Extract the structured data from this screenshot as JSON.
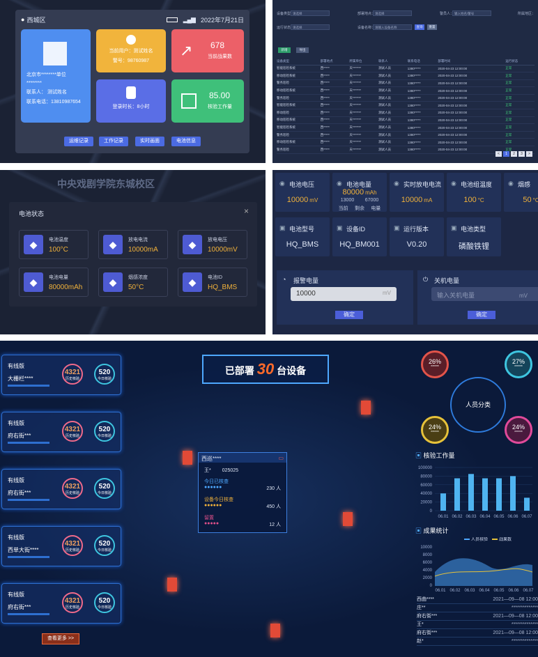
{
  "p1": {
    "location": "西城区",
    "date": "2022年7月21日",
    "unit_name": "北京市********单位",
    "unit_code": "********",
    "contact_label": "联系人：",
    "contact_name": "测试姓名",
    "phone_label": "联系电话：",
    "phone": "13810987654",
    "current_user": "当前用户：测试姓名",
    "badge_label": "警号：",
    "badge": "98760987",
    "results_value": "678",
    "results_label": "当前战果数",
    "login_time": "登录时长：8小时",
    "workload_value": "85.00",
    "workload_label": "核验工作量",
    "buttons": [
      "运维记录",
      "工作记录",
      "实时画面",
      "电池信息"
    ]
  },
  "p2": {
    "filters": [
      {
        "label": "设备类型：",
        "value": "请选择"
      },
      {
        "label": "部署地点：",
        "value": "请选择"
      },
      {
        "label": "警员人：",
        "value": "输入姓名/警号"
      },
      {
        "label": "所属地区：",
        "value": ""
      },
      {
        "label": "运行状态：",
        "value": "请选择"
      },
      {
        "label": "设备名称：",
        "value": "请输入设备名称"
      }
    ],
    "search_btn": "查询",
    "reset_btn": "重置",
    "add_btn": "新增",
    "export_btn": "导出",
    "headers": [
      "设备类型",
      "部署地点",
      "所属单位",
      "联系人",
      "联系电话",
      "部署时间",
      "运行状态"
    ],
    "rows": [
      [
        "智能巡检系统",
        "西*****",
        "天*******",
        "测试人员",
        "1380*****",
        "2020-04-23 12:00:00",
        "正常"
      ],
      [
        "移动巡检系统",
        "西*****",
        "天*******",
        "测试人员",
        "1380*****",
        "2020-04-23 12:00:00",
        "正常"
      ],
      [
        "警务巡检",
        "西*****",
        "天*******",
        "测试人员",
        "1380*****",
        "2020-04-23 12:00:00",
        "正常"
      ],
      [
        "移动巡检系统",
        "西*****",
        "天*******",
        "测试人员",
        "1380*****",
        "2020-04-23 12:00:00",
        "正常"
      ],
      [
        "警务巡检",
        "西*****",
        "天*******",
        "测试人员",
        "1380*****",
        "2020-04-23 12:00:00",
        "正常"
      ],
      [
        "智能巡检系统",
        "西*****",
        "天*******",
        "测试人员",
        "1380*****",
        "2020-04-23 12:00:00",
        "正常"
      ],
      [
        "移动巡检",
        "西*****",
        "天*******",
        "测试人员",
        "1380*****",
        "2020-04-23 12:00:00",
        "正常"
      ],
      [
        "移动巡检系统",
        "西*****",
        "天*******",
        "测试人员",
        "1380*****",
        "2020-04-23 12:00:00",
        "正常"
      ],
      [
        "智能巡检系统",
        "西*****",
        "天*******",
        "测试人员",
        "1380*****",
        "2020-04-23 12:00:00",
        "正常"
      ],
      [
        "警务巡检",
        "西*****",
        "天*******",
        "测试人员",
        "1380*****",
        "2020-04-23 12:00:00",
        "正常"
      ],
      [
        "移动巡检系统",
        "西*****",
        "天*******",
        "测试人员",
        "1380*****",
        "2020-04-23 12:00:00",
        "正常"
      ],
      [
        "警务巡检",
        "西*****",
        "天*******",
        "测试人员",
        "1380*****",
        "2020-04-23 12:00:00",
        "正常"
      ]
    ],
    "pages": [
      "<",
      "1",
      "2",
      "3",
      ">"
    ]
  },
  "p3": {
    "map_label": "中央戏剧学院东城校区",
    "title": "电池状态",
    "close": "×",
    "cells": [
      {
        "label": "电池温度",
        "value": "100°C",
        "icon": "thermometer-icon"
      },
      {
        "label": "放电电流",
        "value": "10000mA",
        "icon": "current-icon"
      },
      {
        "label": "放电电压",
        "value": "10000mV",
        "icon": "voltage-icon"
      },
      {
        "label": "电池电量",
        "value": "80000mAh",
        "icon": "battery-icon"
      },
      {
        "label": "烟感浓度",
        "value": "50°C",
        "icon": "smoke-icon"
      },
      {
        "label": "电池ID",
        "value": "HQ_BMS",
        "icon": "battery-id-icon"
      }
    ]
  },
  "p4": {
    "row1": [
      {
        "label": "电池电压",
        "value": "10000",
        "unit": "mV"
      },
      {
        "label": "电池电量",
        "value": "80000",
        "unit": "mAh",
        "sub1": "13000",
        "sub2": "67000",
        "s1": "当前",
        "s2": "剩余",
        "s3": "电量"
      },
      {
        "label": "实时放电电流",
        "value": "10000",
        "unit": "mA"
      },
      {
        "label": "电池组温度",
        "value": "100",
        "unit": "°C"
      },
      {
        "label": "烟感",
        "value": "50",
        "unit": "°C"
      }
    ],
    "row2": [
      {
        "label": "电池型号",
        "value": "HQ_BMS"
      },
      {
        "label": "设备ID",
        "value": "HQ_BM001"
      },
      {
        "label": "运行版本",
        "value": "V0.20"
      },
      {
        "label": "电池类型",
        "value": "磷酸铁锂"
      }
    ],
    "alarm": {
      "label": "报警电量",
      "value": "10000",
      "unit": "mV",
      "btn": "确定"
    },
    "shutdown": {
      "label": "关机电量",
      "placeholder": "输入关机电量",
      "unit": "mV",
      "btn": "确定"
    }
  },
  "p5": {
    "deployed_prefix": "已部署",
    "deployed_num": "30",
    "deployed_suffix": "台设备",
    "left_cards": [
      {
        "tag": "有线版",
        "name": "大栅栏****",
        "hist": "4321",
        "today": "520"
      },
      {
        "tag": "有线版",
        "name": "府右街***",
        "hist": "4321",
        "today": "520"
      },
      {
        "tag": "有线版",
        "name": "府右街***",
        "hist": "4321",
        "today": "520"
      },
      {
        "tag": "有线版",
        "name": "西单大街****",
        "hist": "4321",
        "today": "520"
      },
      {
        "tag": "有线版",
        "name": "府右街***",
        "hist": "4321",
        "today": "520"
      }
    ],
    "hist_label": "历史核验",
    "today_label": "今日核验",
    "more_btn": "查看更多 >>",
    "popup": {
      "title": "西巡****",
      "user": "王*",
      "id": "025025",
      "row1": "今日已核查",
      "v1": "230",
      "row2": "设备今日核查",
      "v2": "450",
      "row3": "留置",
      "v3": "12",
      "unit": "人"
    },
    "people": {
      "title": "人员分类",
      "pcts": [
        "26%",
        "27%",
        "24%",
        "24%"
      ],
      "sub": "******"
    },
    "work_title": "核验工作量",
    "work_chart": {
      "type": "bar",
      "categories": [
        "06.01",
        "06.02",
        "06.03",
        "06.04",
        "06.05",
        "06.06",
        "06.07"
      ],
      "values": [
        40000,
        75000,
        85000,
        75000,
        75000,
        80000,
        30000
      ],
      "yticks": [
        "100000",
        "80000",
        "60000",
        "40000",
        "20000",
        "0"
      ],
      "ylim": [
        0,
        100000
      ]
    },
    "result_title": "成果统计",
    "result_chart": {
      "type": "area",
      "series": [
        {
          "name": "人员核验"
        },
        {
          "name": "战果数"
        }
      ],
      "yticks": [
        "10000",
        "8000",
        "6000",
        "4000",
        "2000",
        "0"
      ],
      "categories": [
        "06.01",
        "06.02",
        "06.03",
        "06.04",
        "06.05",
        "06.06",
        "06.07"
      ]
    },
    "logs": [
      {
        "a": "西曲****",
        "b": "2021—09—08 12:00"
      },
      {
        "a": "庄**",
        "b": "**************"
      },
      {
        "a": "府右街***",
        "b": "2021—09—08 12:00"
      },
      {
        "a": "王*",
        "b": "**************"
      },
      {
        "a": "府右街***",
        "b": "2021—09—08 12:00"
      },
      {
        "a": "赵*",
        "b": "**************"
      }
    ],
    "colors": {
      "accent": "#1e9bff",
      "orange": "#f0702c"
    }
  }
}
